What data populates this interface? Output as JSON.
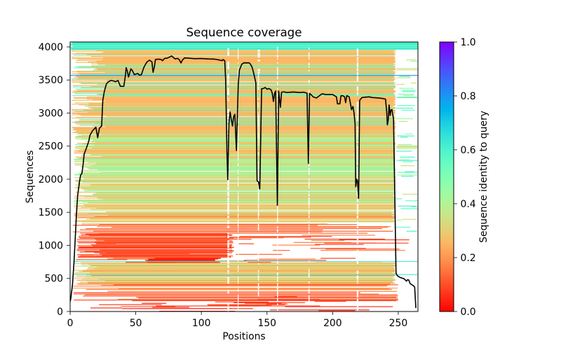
{
  "chart_data": {
    "type": "heatmap",
    "title": "Sequence coverage",
    "xlabel": "Positions",
    "ylabel": "Sequences",
    "xlim": [
      0,
      265
    ],
    "ylim": [
      0,
      4074
    ],
    "grid": false,
    "xticks": {
      "values": [
        0,
        50,
        100,
        150,
        200,
        250
      ],
      "labels": [
        "0",
        "50",
        "100",
        "150",
        "200",
        "250"
      ]
    },
    "yticks": {
      "values": [
        0,
        500,
        1000,
        1500,
        2000,
        2500,
        3000,
        3500,
        4000
      ],
      "labels": [
        "0",
        "500",
        "1000",
        "1500",
        "2000",
        "2500",
        "3000",
        "3500",
        "4000"
      ]
    },
    "colorbar": {
      "label": "Sequence identity to query",
      "colormap": "rainbow_r",
      "range": [
        0,
        1
      ],
      "placement": "right",
      "ticks": [
        0.0,
        0.2,
        0.4,
        0.6,
        0.8,
        1.0
      ],
      "tick_labels": [
        "0.0",
        "0.2",
        "0.4",
        "0.6",
        "0.8",
        "1.0"
      ]
    },
    "coverage_line": {
      "name": "coverage",
      "color": "#000000",
      "x": [
        0,
        0.5,
        1.8,
        3,
        4.1,
        4.8,
        5.7,
        7.1,
        8,
        8.9,
        9.8,
        10.7,
        12.4,
        14.2,
        15.1,
        17,
        19.6,
        21,
        22.3,
        24,
        24.9,
        26,
        27.6,
        29,
        31.1,
        33,
        34.7,
        36.5,
        38.3,
        40.9,
        42,
        42.7,
        43.5,
        44.5,
        46.3,
        47.5,
        48.9,
        50,
        51.6,
        53,
        54.3,
        56.1,
        57.5,
        58.7,
        60.5,
        62.3,
        63.2,
        64.2,
        65,
        67,
        69.4,
        70.3,
        72.1,
        74,
        77.4,
        79,
        80.1,
        81.8,
        83,
        84.5,
        85.5,
        87.2,
        90,
        95,
        100,
        105,
        110,
        113,
        115.7,
        116.5,
        117.8,
        118.5,
        119.5,
        120.1,
        121,
        121.9,
        122.8,
        123.7,
        124.6,
        125.5,
        126.7,
        127.5,
        128.1,
        129,
        130.8,
        132.5,
        134.4,
        136,
        137,
        138.5,
        139.7,
        141.5,
        142.4,
        143.5,
        144.5,
        145.9,
        147,
        148.6,
        150,
        151.5,
        153.1,
        154,
        154.9,
        155.8,
        156.6,
        157.9,
        158.9,
        160.2,
        161.1,
        163,
        165,
        170,
        175,
        178,
        180.5,
        181.5,
        182.4,
        184,
        185.1,
        187.7,
        190.4,
        192,
        195,
        200,
        202.9,
        203.7,
        205.5,
        206.4,
        208,
        209.1,
        209.9,
        210.8,
        212.6,
        213.5,
        214.4,
        215.5,
        216.3,
        217.1,
        217.6,
        218.3,
        218.9,
        219.8,
        220.6,
        222.4,
        225,
        227.8,
        230,
        235,
        238,
        240.3,
        241.2,
        241.7,
        242.4,
        243,
        243.8,
        244.5,
        245.2,
        246.4,
        247.4,
        248.3,
        249,
        250.1,
        252,
        254.5,
        256.3,
        257,
        258,
        259,
        260,
        261.6,
        262.5,
        263.4
      ],
      "y": [
        150,
        194,
        405,
        761,
        1182,
        1464,
        1746,
        1958,
        2063,
        2081,
        2204,
        2381,
        2469,
        2575,
        2663,
        2730,
        2786,
        2627,
        2770,
        2804,
        3193,
        3320,
        3439,
        3470,
        3492,
        3485,
        3474,
        3492,
        3404,
        3404,
        3550,
        3686,
        3640,
        3545,
        3668,
        3640,
        3580,
        3590,
        3598,
        3570,
        3580,
        3686,
        3740,
        3775,
        3799,
        3775,
        3616,
        3700,
        3809,
        3815,
        3809,
        3792,
        3827,
        3830,
        3862,
        3835,
        3817,
        3827,
        3810,
        3757,
        3800,
        3834,
        3830,
        3822,
        3825,
        3818,
        3815,
        3805,
        3792,
        3809,
        3792,
        3500,
        2400,
        1993,
        2850,
        3016,
        2900,
        2804,
        2950,
        2981,
        2434,
        3000,
        3439,
        3650,
        3739,
        3760,
        3757,
        3760,
        3749,
        3700,
        3616,
        3457,
        1976,
        1960,
        1852,
        3369,
        3370,
        3386,
        3360,
        3370,
        3351,
        3300,
        3175,
        3300,
        3333,
        1605,
        3333,
        3086,
        3316,
        3320,
        3310,
        3318,
        3310,
        3315,
        3300,
        2240,
        3298,
        3270,
        3245,
        3228,
        3270,
        3290,
        3280,
        3280,
        3245,
        3139,
        3139,
        3263,
        3260,
        3245,
        3157,
        3263,
        3245,
        3150,
        3051,
        3100,
        3000,
        2839,
        1887,
        2000,
        1976,
        1711,
        3193,
        3235,
        3240,
        3245,
        3235,
        3228,
        3220,
        3210,
        3016,
        2822,
        2900,
        3122,
        2963,
        3050,
        3051,
        2910,
        1711,
        582,
        550,
        529,
        510,
        494,
        459,
        480,
        476,
        423,
        410,
        388,
        370,
        53
      ]
    },
    "heatmap_regions": [
      {
        "name": "low-identity-bottom",
        "mode": "scatter",
        "seq": [
          0,
          150
        ],
        "pos": [
          5,
          250
        ],
        "seg_len": [
          15,
          90
        ],
        "count": 2,
        "density": 0.6,
        "identity": [
          0.04,
          0.06,
          0.08,
          0.1
        ]
      },
      {
        "name": "red-band",
        "mode": "fill",
        "seq": [
          150,
          300
        ],
        "pos": [
          2,
          250
        ],
        "jitter": [
          60,
          40
        ],
        "density": 0.6,
        "identity": [
          0.08,
          0.1,
          0.12,
          0.15
        ]
      },
      {
        "name": "red-band-scatter",
        "mode": "scatter",
        "seq": [
          150,
          300
        ],
        "pos": [
          120,
          265
        ],
        "seg_len": [
          10,
          50
        ],
        "count": 1,
        "density": 0.4,
        "identity": [
          0.08,
          0.12
        ]
      },
      {
        "name": "orange-band",
        "mode": "fill",
        "seq": [
          300,
          420
        ],
        "pos": [
          2,
          250
        ],
        "jitter": [
          40,
          10
        ],
        "density": 0.8,
        "identity": [
          0.12,
          0.15,
          0.18,
          0.2,
          0.22
        ]
      },
      {
        "name": "mixed-lower",
        "mode": "fill",
        "seq": [
          420,
          740
        ],
        "pos": [
          3,
          248
        ],
        "jitter": [
          25,
          3
        ],
        "density": 0.95,
        "identity": [
          0.2,
          0.23,
          0.25,
          0.26,
          0.28,
          0.3,
          0.33,
          0.38
        ]
      },
      {
        "name": "red-sparse-middle",
        "mode": "scatter",
        "seq": [
          740,
          1200
        ],
        "pos": [
          2,
          265
        ],
        "seg_len": [
          10,
          70
        ],
        "count": 2,
        "density": 0.45,
        "identity": [
          0.08,
          0.1,
          0.13,
          0.17
        ]
      },
      {
        "name": "deep-red-patch",
        "mode": "fill",
        "seq": [
          740,
          815
        ],
        "pos": [
          57,
          115
        ],
        "jitter": [
          8,
          5
        ],
        "density": 0.9,
        "identity": [
          0.03,
          0.05
        ]
      },
      {
        "name": "red-dense-left",
        "mode": "fill",
        "seq": [
          815,
          1180
        ],
        "pos": [
          5,
          125
        ],
        "jitter": [
          30,
          6
        ],
        "density": 0.85,
        "identity": [
          0.07,
          0.09,
          0.1,
          0.12,
          0.14
        ]
      },
      {
        "name": "orange-transition",
        "mode": "fill",
        "seq": [
          1180,
          1350
        ],
        "pos": [
          2,
          248
        ],
        "jitter": [
          30,
          60
        ],
        "density": 0.55,
        "identity": [
          0.12,
          0.15,
          0.18,
          0.22
        ]
      },
      {
        "name": "mixed-middle-low",
        "mode": "fill",
        "seq": [
          1350,
          1550
        ],
        "pos": [
          3,
          248
        ],
        "jitter": [
          30,
          4
        ],
        "density": 0.9,
        "identity": [
          0.2,
          0.24,
          0.27,
          0.3,
          0.38
        ]
      },
      {
        "name": "mixed-middle",
        "mode": "fill",
        "seq": [
          1550,
          2700
        ],
        "pos": [
          3,
          248
        ],
        "jitter": [
          22,
          2
        ],
        "density": 0.96,
        "identity": [
          0.25,
          0.27,
          0.3,
          0.33,
          0.38,
          0.42,
          0.4,
          0.26,
          0.36,
          0.5
        ]
      },
      {
        "name": "orange-upper",
        "mode": "fill",
        "seq": [
          2700,
          3960
        ],
        "pos": [
          1,
          248
        ],
        "jitter": [
          28,
          2
        ],
        "density": 0.97,
        "identity": [
          0.24,
          0.25,
          0.26,
          0.27,
          0.24,
          0.26,
          0.29,
          0.55,
          0.52,
          0.25
        ]
      },
      {
        "name": "right-sparse-lines",
        "mode": "scatter",
        "seq": [
          1200,
          3960
        ],
        "pos": [
          248,
          265
        ],
        "seg_len": [
          4,
          17
        ],
        "count": 1,
        "density": 0.18,
        "identity": [
          0.35,
          0.45,
          0.55,
          0.6
        ]
      },
      {
        "name": "high-identity-top",
        "mode": "fill",
        "seq": [
          3960,
          4074
        ],
        "pos": [
          0,
          265
        ],
        "jitter": [
          2,
          0
        ],
        "density": 1.0,
        "identity": [
          0.58,
          0.62,
          0.66
        ]
      }
    ],
    "heatmap_lines": [
      {
        "seq": 555,
        "pos": [
          3,
          265
        ],
        "identity": 0.62
      },
      {
        "seq": 752,
        "pos": [
          3,
          265
        ],
        "identity": 0.62
      },
      {
        "seq": 3565,
        "pos": [
          0,
          265
        ],
        "identity": 0.82
      }
    ],
    "gap_columns": [
      {
        "pos": 120.5,
        "width": 1.3,
        "seq": [
          0,
          3990
        ]
      },
      {
        "pos": 128,
        "width": 0.6,
        "seq": [
          0,
          3990
        ]
      },
      {
        "pos": 143.5,
        "width": 0.8,
        "seq": [
          200,
          3600
        ]
      },
      {
        "pos": 143.8,
        "width": 1.8,
        "seq": [
          3600,
          3990
        ]
      },
      {
        "pos": 158,
        "width": 0.8,
        "seq": [
          0,
          3990
        ]
      },
      {
        "pos": 182,
        "width": 0.8,
        "seq": [
          0,
          3990
        ]
      },
      {
        "pos": 219,
        "width": 1.2,
        "seq": [
          0,
          3990
        ]
      }
    ]
  }
}
